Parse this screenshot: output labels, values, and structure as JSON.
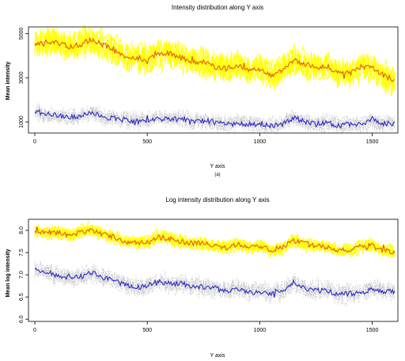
{
  "chart_data": [
    {
      "type": "line",
      "title": "Intensity distribution along Y axis",
      "xlabel": "Y axis",
      "ylabel": "Mean intensity",
      "caption": "(a)",
      "xlim": [
        0,
        1600
      ],
      "ylim": [
        500,
        5300
      ],
      "xticks": [
        0,
        500,
        1000,
        1500
      ],
      "yticks": [
        1000,
        3000,
        5000
      ],
      "grid": false,
      "legend": "none",
      "series": [
        {
          "role": "upper-band",
          "color": "#ffff00",
          "spread": 600,
          "x": [
            0,
            50,
            100,
            150,
            200,
            250,
            300,
            350,
            400,
            450,
            500,
            550,
            600,
            650,
            700,
            750,
            800,
            850,
            900,
            950,
            1000,
            1050,
            1100,
            1150,
            1200,
            1250,
            1300,
            1350,
            1400,
            1450,
            1500,
            1550,
            1600
          ],
          "values": [
            4500,
            4550,
            4600,
            4400,
            4500,
            4700,
            4500,
            4300,
            4000,
            3900,
            3750,
            4100,
            4100,
            3900,
            3700,
            3750,
            3500,
            3400,
            3600,
            3300,
            3400,
            3100,
            3300,
            3800,
            3600,
            3500,
            3500,
            3200,
            3200,
            3500,
            3500,
            3100,
            2900
          ]
        },
        {
          "role": "upper-mean",
          "color": "#e85b00",
          "x": [
            0,
            50,
            100,
            150,
            200,
            250,
            300,
            350,
            400,
            450,
            500,
            550,
            600,
            650,
            700,
            750,
            800,
            850,
            900,
            950,
            1000,
            1050,
            1100,
            1150,
            1200,
            1250,
            1300,
            1350,
            1400,
            1450,
            1500,
            1550,
            1600
          ],
          "values": [
            4500,
            4550,
            4600,
            4400,
            4500,
            4700,
            4500,
            4300,
            4000,
            3900,
            3750,
            4100,
            4100,
            3900,
            3700,
            3750,
            3500,
            3400,
            3600,
            3300,
            3400,
            3100,
            3300,
            3800,
            3600,
            3500,
            3500,
            3200,
            3200,
            3500,
            3500,
            3100,
            2900
          ]
        },
        {
          "role": "lower-band",
          "color": "#bbbbbb",
          "spread": 350,
          "x": [
            0,
            50,
            100,
            150,
            200,
            250,
            300,
            350,
            400,
            450,
            500,
            550,
            600,
            650,
            700,
            750,
            800,
            850,
            900,
            950,
            1000,
            1050,
            1100,
            1150,
            1200,
            1250,
            1300,
            1350,
            1400,
            1450,
            1500,
            1550,
            1600
          ],
          "values": [
            1500,
            1350,
            1300,
            1250,
            1200,
            1450,
            1200,
            1150,
            1100,
            1050,
            1050,
            1150,
            1100,
            1150,
            1050,
            1050,
            1000,
            900,
            950,
            900,
            900,
            850,
            900,
            1200,
            1000,
            900,
            950,
            850,
            900,
            850,
            1100,
            900,
            950
          ]
        },
        {
          "role": "lower-mean",
          "color": "#2a2ac8",
          "x": [
            0,
            50,
            100,
            150,
            200,
            250,
            300,
            350,
            400,
            450,
            500,
            550,
            600,
            650,
            700,
            750,
            800,
            850,
            900,
            950,
            1000,
            1050,
            1100,
            1150,
            1200,
            1250,
            1300,
            1350,
            1400,
            1450,
            1500,
            1550,
            1600
          ],
          "values": [
            1500,
            1350,
            1300,
            1250,
            1200,
            1450,
            1200,
            1150,
            1100,
            1050,
            1050,
            1150,
            1100,
            1150,
            1050,
            1050,
            1000,
            900,
            950,
            900,
            900,
            850,
            900,
            1200,
            1000,
            900,
            950,
            850,
            900,
            850,
            1100,
            900,
            950
          ]
        }
      ]
    },
    {
      "type": "line",
      "title": "Log intensity distribution along Y axis",
      "xlabel": "Y axis",
      "ylabel": "Mean log intensity",
      "xlim": [
        0,
        1600
      ],
      "ylim": [
        5.95,
        8.25
      ],
      "xticks": [
        0,
        500,
        1000,
        1500
      ],
      "yticks": [
        6.0,
        6.5,
        7.0,
        7.5,
        8.0
      ],
      "ytick_labels": [
        "6.0",
        "6.5",
        "7.0",
        "7.5",
        "8.0"
      ],
      "grid": false,
      "legend": "none",
      "series": [
        {
          "role": "upper-band",
          "color": "#ffff00",
          "spread": 0.14,
          "x": [
            0,
            50,
            100,
            150,
            200,
            250,
            300,
            350,
            400,
            450,
            500,
            550,
            600,
            650,
            700,
            750,
            800,
            850,
            900,
            950,
            1000,
            1050,
            1100,
            1150,
            1200,
            1250,
            1300,
            1350,
            1400,
            1450,
            1500,
            1550,
            1600
          ],
          "values": [
            8.0,
            7.95,
            7.95,
            7.9,
            7.95,
            8.0,
            7.92,
            7.85,
            7.75,
            7.72,
            7.72,
            7.85,
            7.8,
            7.75,
            7.7,
            7.72,
            7.65,
            7.6,
            7.7,
            7.6,
            7.65,
            7.55,
            7.6,
            7.78,
            7.7,
            7.65,
            7.62,
            7.55,
            7.55,
            7.65,
            7.65,
            7.55,
            7.5
          ]
        },
        {
          "role": "upper-mean",
          "color": "#e85b00",
          "x": [
            0,
            50,
            100,
            150,
            200,
            250,
            300,
            350,
            400,
            450,
            500,
            550,
            600,
            650,
            700,
            750,
            800,
            850,
            900,
            950,
            1000,
            1050,
            1100,
            1150,
            1200,
            1250,
            1300,
            1350,
            1400,
            1450,
            1500,
            1550,
            1600
          ],
          "values": [
            8.0,
            7.95,
            7.95,
            7.9,
            7.95,
            8.0,
            7.92,
            7.85,
            7.75,
            7.72,
            7.72,
            7.85,
            7.8,
            7.75,
            7.7,
            7.72,
            7.65,
            7.6,
            7.7,
            7.6,
            7.65,
            7.55,
            7.6,
            7.78,
            7.7,
            7.65,
            7.62,
            7.55,
            7.55,
            7.65,
            7.65,
            7.55,
            7.5
          ]
        },
        {
          "role": "lower-band",
          "color": "#bbbbbb",
          "spread": 0.2,
          "x": [
            0,
            50,
            100,
            150,
            200,
            250,
            300,
            350,
            400,
            450,
            500,
            550,
            600,
            650,
            700,
            750,
            800,
            850,
            900,
            950,
            1000,
            1050,
            1100,
            1150,
            1200,
            1250,
            1300,
            1350,
            1400,
            1450,
            1500,
            1550,
            1600
          ],
          "values": [
            7.15,
            7.05,
            7.0,
            6.95,
            6.95,
            7.05,
            6.95,
            6.85,
            6.78,
            6.72,
            6.75,
            6.85,
            6.8,
            6.8,
            6.75,
            6.72,
            6.7,
            6.62,
            6.68,
            6.6,
            6.62,
            6.58,
            6.6,
            6.85,
            6.7,
            6.65,
            6.65,
            6.55,
            6.58,
            6.58,
            6.7,
            6.62,
            6.62
          ]
        },
        {
          "role": "lower-mean",
          "color": "#2a2ac8",
          "x": [
            0,
            50,
            100,
            150,
            200,
            250,
            300,
            350,
            400,
            450,
            500,
            550,
            600,
            650,
            700,
            750,
            800,
            850,
            900,
            950,
            1000,
            1050,
            1100,
            1150,
            1200,
            1250,
            1300,
            1350,
            1400,
            1450,
            1500,
            1550,
            1600
          ],
          "values": [
            7.15,
            7.05,
            7.0,
            6.95,
            6.95,
            7.05,
            6.95,
            6.85,
            6.78,
            6.72,
            6.75,
            6.85,
            6.8,
            6.8,
            6.75,
            6.72,
            6.7,
            6.62,
            6.68,
            6.6,
            6.62,
            6.58,
            6.6,
            6.85,
            6.7,
            6.65,
            6.65,
            6.55,
            6.58,
            6.58,
            6.7,
            6.62,
            6.62
          ]
        }
      ]
    }
  ]
}
